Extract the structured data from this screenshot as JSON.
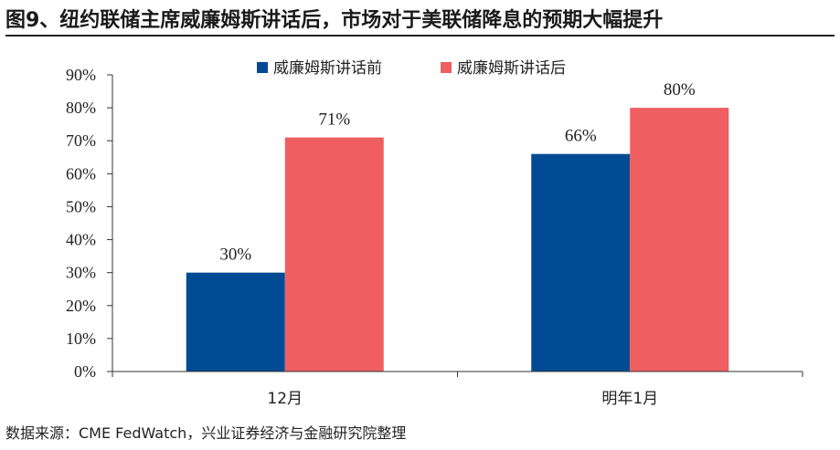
{
  "figure": {
    "title": "图9、纽约联储主席威廉姆斯讲话后，市场对于美联储降息的预期大幅提升",
    "source": "数据来源：CME FedWatch，兴业证券经济与金融研究院整理"
  },
  "chart_data": {
    "type": "bar",
    "categories": [
      "12月",
      "明年1月"
    ],
    "series": [
      {
        "name": "威廉姆斯讲话前",
        "values": [
          30,
          66
        ],
        "color": "#004b93"
      },
      {
        "name": "威廉姆斯讲话后",
        "values": [
          71,
          80
        ],
        "color": "#ef5e61"
      }
    ],
    "ylim": [
      0,
      90
    ],
    "yticks": [
      0,
      10,
      20,
      30,
      40,
      50,
      60,
      70,
      80,
      90
    ],
    "ytick_labels": [
      "0%",
      "10%",
      "20%",
      "30%",
      "40%",
      "50%",
      "60%",
      "70%",
      "80%",
      "90%"
    ],
    "data_labels": [
      [
        "30%",
        "66%"
      ],
      [
        "71%",
        "80%"
      ]
    ],
    "legend": "top-center",
    "grid": false
  }
}
